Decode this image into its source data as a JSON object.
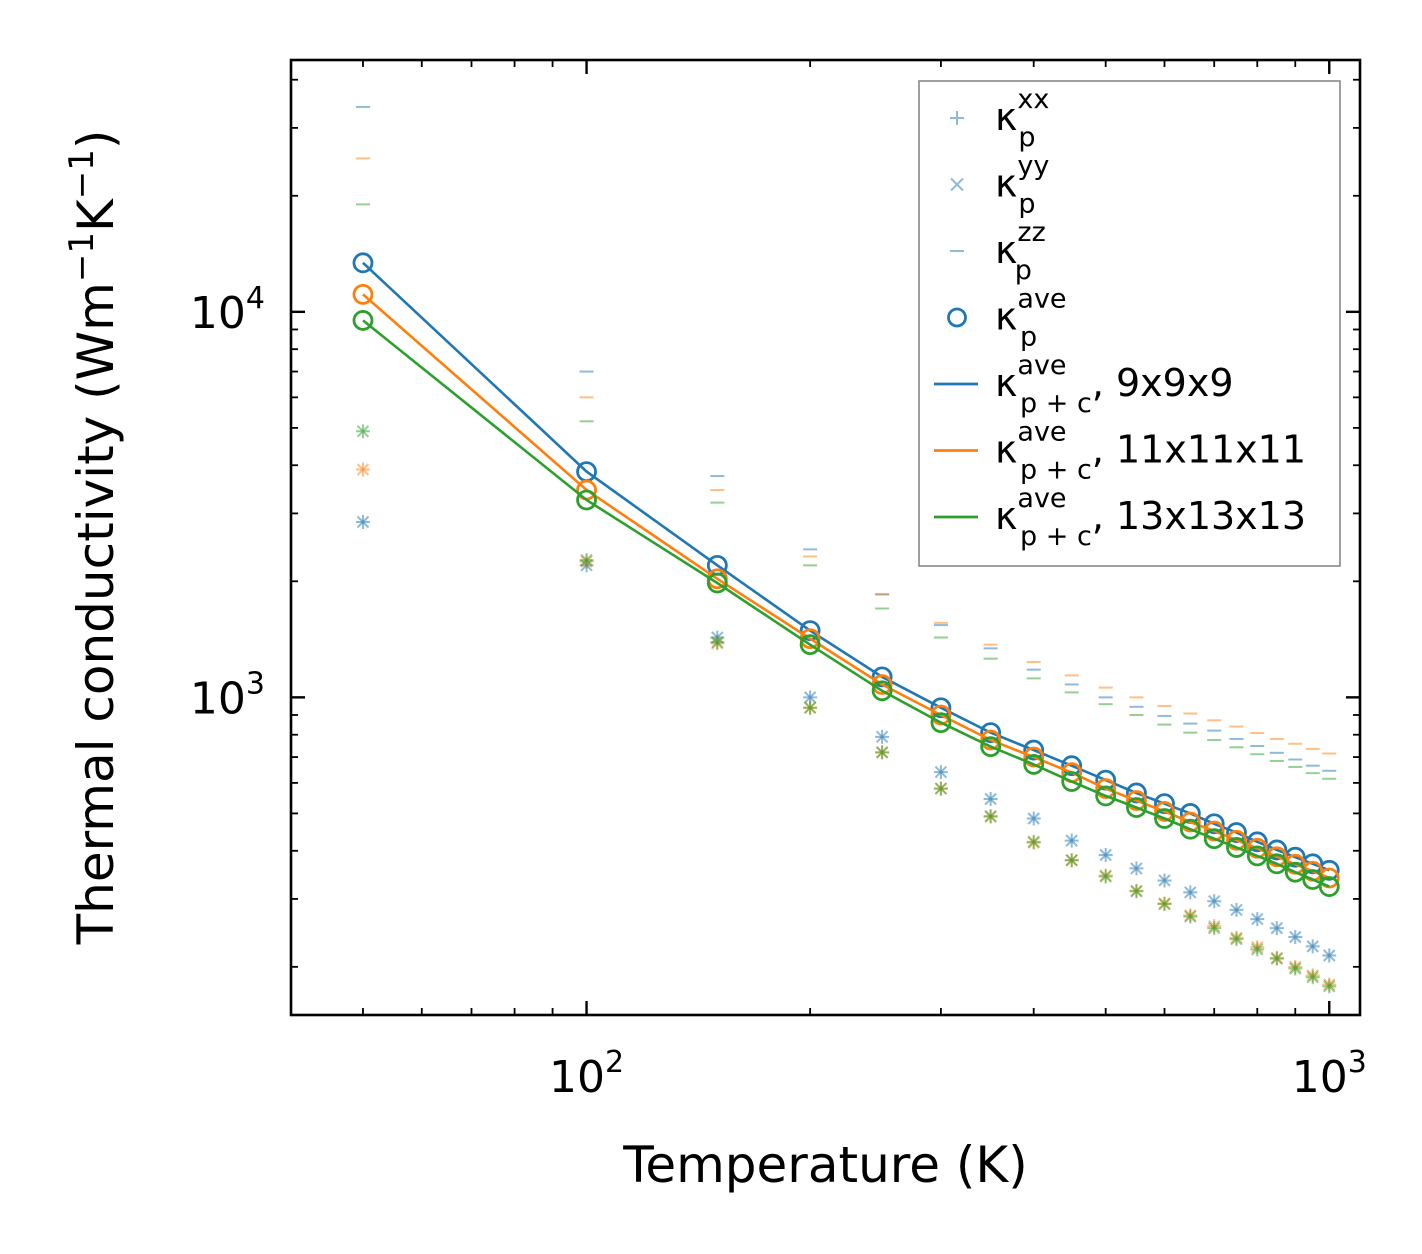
{
  "chart_data": {
    "type": "scatter",
    "xscale": "log",
    "yscale": "log",
    "xlim": [
      40,
      1100
    ],
    "ylim": [
      150,
      45000
    ],
    "xlabel": "Temperature (K)",
    "ylabel_parts": [
      "Thermal conductivity (Wm",
      "−1",
      "K",
      "−1",
      ")"
    ],
    "x_ticks": [
      {
        "value": 100,
        "base": "10",
        "exp": "2"
      },
      {
        "value": 1000,
        "base": "10",
        "exp": "3"
      }
    ],
    "y_ticks": [
      {
        "value": 1000,
        "base": "10",
        "exp": "3"
      },
      {
        "value": 10000,
        "base": "10",
        "exp": "4"
      }
    ],
    "colors": {
      "blue": "#1f77b4",
      "orange": "#ff7f0e",
      "green": "#2ca02c"
    },
    "temperatures": [
      50,
      100,
      150,
      200,
      250,
      300,
      350,
      400,
      450,
      500,
      550,
      600,
      650,
      700,
      750,
      800,
      850,
      900,
      950,
      1000
    ],
    "series": [
      {
        "name": "9x9x9",
        "color": "#1f77b4",
        "kxx": [
          2850,
          2200,
          1430,
          1000,
          790,
          640,
          545,
          485,
          425,
          390,
          360,
          335,
          312,
          296,
          281,
          266,
          252,
          239,
          226,
          214
        ],
        "kyy": [
          2850,
          2200,
          1430,
          1000,
          790,
          640,
          545,
          485,
          425,
          390,
          360,
          335,
          312,
          296,
          281,
          266,
          252,
          239,
          226,
          214
        ],
        "kzz": [
          34000,
          7000,
          3750,
          2420,
          1850,
          1540,
          1340,
          1180,
          1080,
          1000,
          945,
          895,
          855,
          820,
          780,
          748,
          718,
          690,
          665,
          645
        ],
        "kave": [
          13400,
          3850,
          2200,
          1490,
          1130,
          940,
          810,
          730,
          665,
          610,
          565,
          530,
          500,
          470,
          446,
          422,
          402,
          385,
          370,
          356
        ],
        "kpc": [
          13400,
          3850,
          2200,
          1490,
          1130,
          940,
          810,
          730,
          665,
          610,
          565,
          530,
          500,
          470,
          446,
          422,
          402,
          385,
          370,
          356
        ]
      },
      {
        "name": "11x11x11",
        "color": "#ff7f0e",
        "kxx": [
          3900,
          2250,
          1380,
          940,
          720,
          580,
          490,
          420,
          378,
          345,
          315,
          292,
          272,
          255,
          238,
          225,
          211,
          200,
          190,
          180
        ],
        "kyy": [
          3900,
          2250,
          1380,
          940,
          720,
          580,
          490,
          420,
          378,
          345,
          315,
          292,
          272,
          255,
          238,
          225,
          211,
          200,
          190,
          180
        ],
        "kzz": [
          25000,
          6000,
          3450,
          2320,
          1850,
          1560,
          1370,
          1235,
          1140,
          1060,
          1000,
          950,
          908,
          872,
          840,
          808,
          780,
          758,
          735,
          715
        ],
        "kave": [
          11100,
          3450,
          2030,
          1420,
          1080,
          900,
          775,
          700,
          638,
          580,
          540,
          506,
          475,
          450,
          426,
          406,
          386,
          369,
          354,
          340
        ],
        "kpc": [
          11100,
          3450,
          2030,
          1420,
          1080,
          900,
          775,
          700,
          638,
          580,
          540,
          506,
          475,
          450,
          426,
          406,
          386,
          369,
          354,
          340
        ]
      },
      {
        "name": "13x13x13",
        "color": "#2ca02c",
        "kxx": [
          4900,
          2270,
          1390,
          940,
          720,
          580,
          492,
          422,
          378,
          343,
          314,
          291,
          270,
          252,
          236,
          222,
          210,
          198,
          188,
          178
        ],
        "kyy": [
          4900,
          2270,
          1390,
          940,
          720,
          580,
          492,
          422,
          378,
          343,
          314,
          291,
          270,
          252,
          236,
          222,
          210,
          198,
          188,
          178
        ],
        "kzz": [
          19000,
          5200,
          3200,
          2200,
          1700,
          1430,
          1260,
          1120,
          1030,
          960,
          900,
          850,
          810,
          775,
          742,
          712,
          684,
          660,
          636,
          615
        ],
        "kave": [
          9500,
          3250,
          1980,
          1370,
          1040,
          860,
          745,
          670,
          605,
          555,
          518,
          485,
          455,
          430,
          408,
          388,
          370,
          352,
          337,
          323
        ],
        "kpc": [
          9500,
          3250,
          1980,
          1370,
          1040,
          860,
          745,
          670,
          605,
          555,
          518,
          485,
          455,
          430,
          408,
          388,
          370,
          352,
          337,
          323
        ]
      }
    ],
    "legend": {
      "position": "upper-right",
      "entries": [
        {
          "marker": "plus",
          "color": "#1f77b4",
          "alpha": 0.5,
          "base": "κ",
          "sub": "p",
          "sup": "xx",
          "suffix": ""
        },
        {
          "marker": "x",
          "color": "#1f77b4",
          "alpha": 0.5,
          "base": "κ",
          "sub": "p",
          "sup": "yy",
          "suffix": ""
        },
        {
          "marker": "dash",
          "color": "#1f77b4",
          "alpha": 0.5,
          "base": "κ",
          "sub": "p",
          "sup": "zz",
          "suffix": ""
        },
        {
          "marker": "circle",
          "color": "#1f77b4",
          "alpha": 1,
          "base": "κ",
          "sub": "p",
          "sup": "ave",
          "suffix": ""
        },
        {
          "marker": "line",
          "color": "#1f77b4",
          "alpha": 1,
          "base": "κ",
          "sub": "p + c",
          "sup": "ave",
          "suffix": ", 9x9x9"
        },
        {
          "marker": "line",
          "color": "#ff7f0e",
          "alpha": 1,
          "base": "κ",
          "sub": "p + c",
          "sup": "ave",
          "suffix": ", 11x11x11"
        },
        {
          "marker": "line",
          "color": "#2ca02c",
          "alpha": 1,
          "base": "κ",
          "sub": "p + c",
          "sup": "ave",
          "suffix": ", 13x13x13"
        }
      ]
    }
  }
}
